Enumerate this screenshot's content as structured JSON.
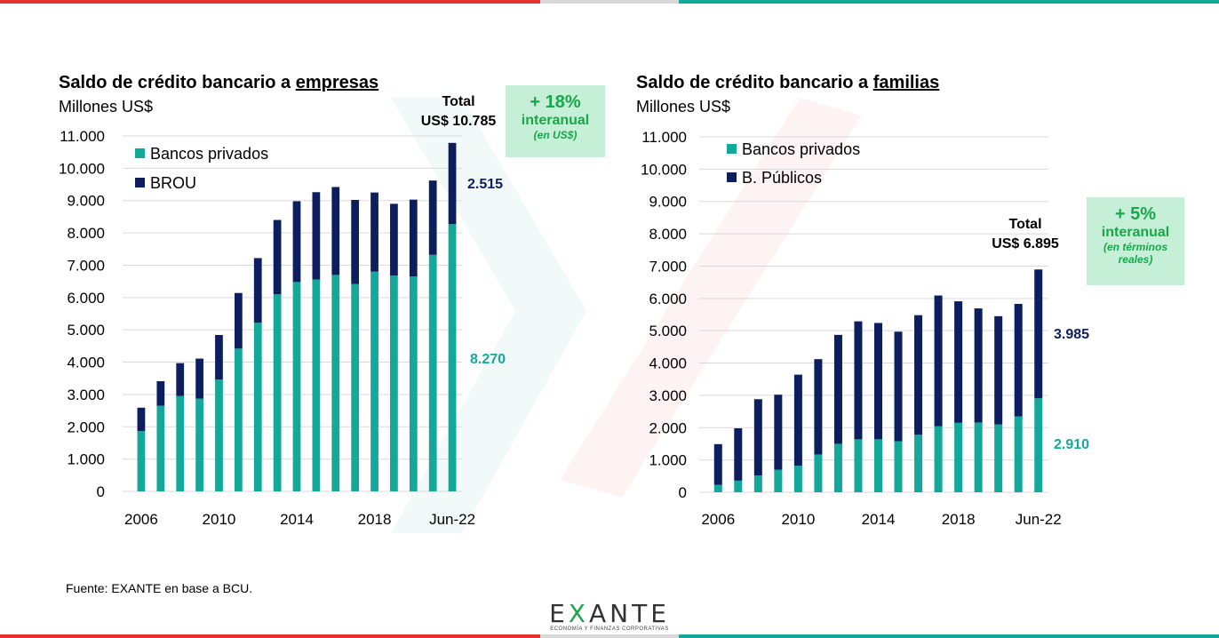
{
  "colors": {
    "private": "#14a89a",
    "public": "#0d1e5e",
    "accent_red": "#e8302f",
    "accent_teal": "#14a89a",
    "badge_green": "#1aa64a"
  },
  "chart_data": [
    {
      "type": "bar",
      "stacked": true,
      "title_prefix": "Saldo de crédito bancario a ",
      "title_emph": "empresas",
      "subtitle": "Millones US$",
      "ylim": [
        0,
        11000
      ],
      "yticks": [
        "0",
        "1.000",
        "2.000",
        "3.000",
        "4.000",
        "5.000",
        "6.000",
        "7.000",
        "8.000",
        "9.000",
        "10.000",
        "11.000"
      ],
      "ytick_values": [
        0,
        1000,
        2000,
        3000,
        4000,
        5000,
        6000,
        7000,
        8000,
        9000,
        10000,
        11000
      ],
      "xtick_labels": [
        "2006",
        "2010",
        "2014",
        "2018",
        "Jun-22"
      ],
      "xtick_index": [
        0,
        4,
        8,
        12,
        16
      ],
      "categories": [
        "2006",
        "2007",
        "2008",
        "2009",
        "2010",
        "2011",
        "2012",
        "2013",
        "2014",
        "2015",
        "2016",
        "2017",
        "2018",
        "2019",
        "2020",
        "2021",
        "Jun-22"
      ],
      "series": [
        {
          "name": "Bancos privados",
          "values": [
            1870,
            2650,
            2950,
            2870,
            3460,
            4420,
            5220,
            6100,
            6480,
            6560,
            6700,
            6420,
            6800,
            6680,
            6650,
            7320,
            8270
          ]
        },
        {
          "name": "BROU",
          "values": [
            720,
            760,
            1020,
            1240,
            1380,
            1720,
            2000,
            2300,
            2500,
            2700,
            2720,
            2600,
            2450,
            2220,
            2380,
            2300,
            2515
          ]
        }
      ],
      "total_line1": "Total",
      "total_line2": "US$ 10.785",
      "top_label": "2.515",
      "bottom_label": "8.270",
      "badge_big": "+ 18%",
      "badge_mid": "interanual",
      "badge_small": "(en US$)"
    },
    {
      "type": "bar",
      "stacked": true,
      "title_prefix": "Saldo de crédito bancario a ",
      "title_emph": "familias",
      "subtitle": "Millones US$",
      "ylim": [
        0,
        11000
      ],
      "yticks": [
        "0",
        "1.000",
        "2.000",
        "3.000",
        "4.000",
        "5.000",
        "6.000",
        "7.000",
        "8.000",
        "9.000",
        "10.000",
        "11.000"
      ],
      "ytick_values": [
        0,
        1000,
        2000,
        3000,
        4000,
        5000,
        6000,
        7000,
        8000,
        9000,
        10000,
        11000
      ],
      "xtick_labels": [
        "2006",
        "2010",
        "2014",
        "2018",
        "Jun-22"
      ],
      "xtick_index": [
        0,
        4,
        8,
        12,
        16
      ],
      "categories": [
        "2006",
        "2007",
        "2008",
        "2009",
        "2010",
        "2011",
        "2012",
        "2013",
        "2014",
        "2015",
        "2016",
        "2017",
        "2018",
        "2019",
        "2020",
        "2021",
        "Jun-22"
      ],
      "series": [
        {
          "name": "Bancos privados",
          "values": [
            230,
            360,
            520,
            700,
            820,
            1170,
            1500,
            1640,
            1640,
            1580,
            1780,
            2040,
            2150,
            2160,
            2100,
            2350,
            2910
          ]
        },
        {
          "name": "B. Públicos",
          "values": [
            1260,
            1620,
            2360,
            2320,
            2820,
            2950,
            3370,
            3650,
            3600,
            3390,
            3700,
            4050,
            3760,
            3530,
            3350,
            3480,
            3985
          ]
        }
      ],
      "total_line1": "Total",
      "total_line2": "US$ 6.895",
      "top_label": "3.985",
      "bottom_label": "2.910",
      "badge_big": "+ 5%",
      "badge_mid": "interanual",
      "badge_small": "(en términos reales)"
    }
  ],
  "footer": {
    "source": "Fuente: EXANTE en base a BCU.",
    "logo_pre": "E",
    "logo_x": "X",
    "logo_post": "ANTE",
    "logo_tagline": "ECONOMÍA Y FINANZAS CORPORATIVAS"
  }
}
